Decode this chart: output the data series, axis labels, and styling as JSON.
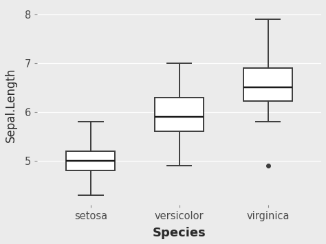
{
  "categories": [
    "setosa",
    "versicolor",
    "virginica"
  ],
  "xlabel": "Species",
  "ylabel": "Sepal.Length",
  "ylim": [
    4.1,
    8.2
  ],
  "yticks": [
    5,
    6,
    7,
    8
  ],
  "background_color": "#EBEBEB",
  "grid_color": "#FFFFFF",
  "box_color": "#FFFFFF",
  "box_edge_color": "#3C3C3C",
  "median_color": "#1A1A1A",
  "whisker_color": "#3C3C3C",
  "outlier_color": "#3C3C3C",
  "boxes": [
    {
      "label": "setosa",
      "q1": 4.8,
      "median": 5.0,
      "q3": 5.2,
      "whislo": 4.3,
      "whishi": 5.8,
      "fliers": []
    },
    {
      "label": "versicolor",
      "q1": 5.6,
      "median": 5.9,
      "q3": 6.3,
      "whislo": 4.9,
      "whishi": 7.0,
      "fliers": []
    },
    {
      "label": "virginica",
      "q1": 6.225,
      "median": 6.5,
      "q3": 6.9,
      "whislo": 5.8,
      "whishi": 7.9,
      "fliers": [
        4.9
      ]
    }
  ],
  "box_width": 0.55,
  "linewidth": 1.4,
  "label_fontsize": 13,
  "tick_fontsize": 10.5
}
